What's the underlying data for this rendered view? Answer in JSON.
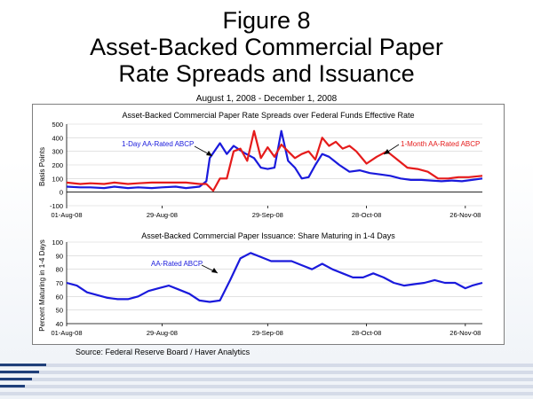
{
  "header": {
    "title_lines": [
      "Figure 8",
      "Asset-Backed Commercial Paper",
      "Rate Spreads and Issuance"
    ],
    "date_range": "August 1, 2008 - December 1, 2008"
  },
  "source": "Source:  Federal Reserve Board / Haver Analytics",
  "colors": {
    "blue": "#1a1adc",
    "red": "#e51b1b",
    "panel_border": "#7f7f7f",
    "grid": "#c8c8c8",
    "footer_blue": "#1f3f7a"
  },
  "chart_data": [
    {
      "type": "line",
      "title": "Asset-Backed Commercial Paper Rate Spreads over Federal Funds Effective Rate",
      "ylabel": "Basis Points",
      "ylim": [
        -100,
        500
      ],
      "yticks": [
        "500",
        "400",
        "300",
        "200",
        "100",
        "0",
        "-100"
      ],
      "xtick_labels": [
        "01-Aug-08",
        "29-Aug-08",
        "29-Sep-08",
        "28-Oct-08",
        "26-Nov-08"
      ],
      "xtick_dates": [
        "2008-08-01",
        "2008-08-29",
        "2008-09-29",
        "2008-10-28",
        "2008-11-26"
      ],
      "xlim": [
        "2008-08-01",
        "2008-12-01"
      ],
      "series": [
        {
          "name": "1-Day AA-Rated ABCP",
          "color": "#1a1adc",
          "x": [
            "2008-08-01",
            "2008-08-05",
            "2008-08-08",
            "2008-08-12",
            "2008-08-15",
            "2008-08-19",
            "2008-08-22",
            "2008-08-26",
            "2008-08-29",
            "2008-09-02",
            "2008-09-05",
            "2008-09-09",
            "2008-09-11",
            "2008-09-12",
            "2008-09-15",
            "2008-09-17",
            "2008-09-19",
            "2008-09-22",
            "2008-09-25",
            "2008-09-27",
            "2008-09-29",
            "2008-10-01",
            "2008-10-03",
            "2008-10-05",
            "2008-10-07",
            "2008-10-09",
            "2008-10-11",
            "2008-10-13",
            "2008-10-15",
            "2008-10-17",
            "2008-10-20",
            "2008-10-23",
            "2008-10-26",
            "2008-10-29",
            "2008-11-01",
            "2008-11-04",
            "2008-11-07",
            "2008-11-10",
            "2008-11-13",
            "2008-11-16",
            "2008-11-19",
            "2008-11-22",
            "2008-11-25",
            "2008-11-28",
            "2008-12-01"
          ],
          "y": [
            40,
            35,
            35,
            30,
            40,
            30,
            35,
            30,
            35,
            40,
            30,
            40,
            80,
            250,
            360,
            280,
            340,
            290,
            250,
            180,
            170,
            180,
            450,
            230,
            180,
            100,
            110,
            200,
            280,
            260,
            200,
            150,
            160,
            140,
            130,
            120,
            100,
            90,
            90,
            85,
            80,
            85,
            80,
            90,
            100
          ]
        },
        {
          "name": "1-Month AA-Rated ABCP",
          "color": "#e51b1b",
          "x": [
            "2008-08-01",
            "2008-08-05",
            "2008-08-08",
            "2008-08-12",
            "2008-08-15",
            "2008-08-19",
            "2008-08-22",
            "2008-08-26",
            "2008-08-29",
            "2008-09-02",
            "2008-09-05",
            "2008-09-09",
            "2008-09-11",
            "2008-09-13",
            "2008-09-15",
            "2008-09-17",
            "2008-09-19",
            "2008-09-21",
            "2008-09-23",
            "2008-09-25",
            "2008-09-27",
            "2008-09-29",
            "2008-10-01",
            "2008-10-03",
            "2008-10-05",
            "2008-10-07",
            "2008-10-09",
            "2008-10-11",
            "2008-10-13",
            "2008-10-15",
            "2008-10-17",
            "2008-10-19",
            "2008-10-21",
            "2008-10-23",
            "2008-10-25",
            "2008-10-28",
            "2008-10-31",
            "2008-11-03",
            "2008-11-06",
            "2008-11-09",
            "2008-11-12",
            "2008-11-15",
            "2008-11-18",
            "2008-11-21",
            "2008-11-24",
            "2008-11-27",
            "2008-12-01"
          ],
          "y": [
            70,
            60,
            65,
            60,
            70,
            60,
            65,
            70,
            70,
            70,
            70,
            60,
            60,
            10,
            100,
            100,
            300,
            320,
            230,
            450,
            250,
            330,
            260,
            350,
            300,
            250,
            280,
            300,
            240,
            400,
            340,
            370,
            320,
            340,
            300,
            210,
            260,
            300,
            240,
            180,
            170,
            150,
            100,
            100,
            110,
            110,
            120
          ]
        }
      ],
      "annotations": [
        "1-Day AA-Rated ABCP",
        "1-Month AA-Rated ABCP"
      ]
    },
    {
      "type": "line",
      "title": "Asset-Backed Commercial Paper Issuance:  Share Maturing in 1-4 Days",
      "ylabel": "Percent Maturing in 1-4 Days",
      "ylim": [
        40,
        100
      ],
      "yticks": [
        "100",
        "90",
        "80",
        "70",
        "60",
        "50",
        "40"
      ],
      "xtick_labels": [
        "01-Aug-08",
        "29-Aug-08",
        "29-Sep-08",
        "28-Oct-08",
        "26-Nov-08"
      ],
      "xtick_dates": [
        "2008-08-01",
        "2008-08-29",
        "2008-09-29",
        "2008-10-28",
        "2008-11-26"
      ],
      "xlim": [
        "2008-08-01",
        "2008-12-01"
      ],
      "series": [
        {
          "name": "AA-Rated ABCP",
          "color": "#1a1adc",
          "x": [
            "2008-08-01",
            "2008-08-04",
            "2008-08-07",
            "2008-08-10",
            "2008-08-13",
            "2008-08-16",
            "2008-08-19",
            "2008-08-22",
            "2008-08-25",
            "2008-08-28",
            "2008-08-31",
            "2008-09-03",
            "2008-09-06",
            "2008-09-09",
            "2008-09-12",
            "2008-09-15",
            "2008-09-18",
            "2008-09-21",
            "2008-09-24",
            "2008-09-27",
            "2008-09-30",
            "2008-10-03",
            "2008-10-06",
            "2008-10-09",
            "2008-10-12",
            "2008-10-15",
            "2008-10-18",
            "2008-10-21",
            "2008-10-24",
            "2008-10-27",
            "2008-10-30",
            "2008-11-02",
            "2008-11-05",
            "2008-11-08",
            "2008-11-11",
            "2008-11-14",
            "2008-11-17",
            "2008-11-20",
            "2008-11-23",
            "2008-11-26",
            "2008-11-28",
            "2008-12-01"
          ],
          "y": [
            70,
            68,
            63,
            61,
            59,
            58,
            58,
            60,
            64,
            66,
            68,
            65,
            62,
            57,
            56,
            57,
            72,
            88,
            92,
            89,
            86,
            86,
            86,
            83,
            80,
            84,
            80,
            77,
            74,
            74,
            77,
            74,
            70,
            68,
            69,
            70,
            72,
            70,
            70,
            66,
            68,
            70
          ]
        }
      ],
      "annotations": [
        "AA-Rated ABCP"
      ]
    }
  ]
}
